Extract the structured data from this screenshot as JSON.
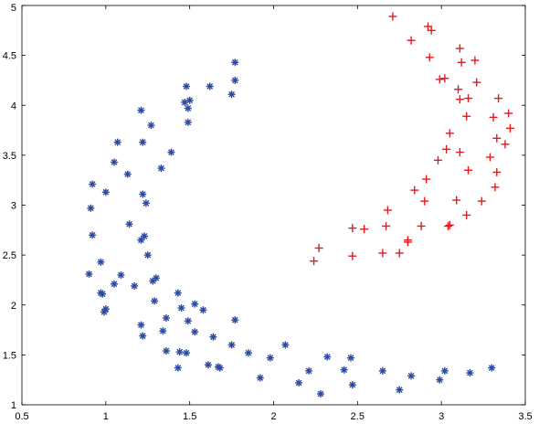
{
  "chart_data": {
    "type": "scatter",
    "title": "",
    "xlabel": "",
    "ylabel": "",
    "xlim": [
      0.5,
      3.5
    ],
    "ylim": [
      1,
      5
    ],
    "xticks": [
      0.5,
      1,
      1.5,
      2,
      2.5,
      3,
      3.5
    ],
    "yticks": [
      1,
      1.5,
      2,
      2.5,
      3,
      3.5,
      4,
      4.5,
      5
    ],
    "xtick_labels": [
      "0.5",
      "1",
      "1.5",
      "2",
      "2.5",
      "3",
      "3.5"
    ],
    "ytick_labels": [
      "1",
      "1.5",
      "2",
      "2.5",
      "3",
      "3.5",
      "4",
      "4.5",
      "5"
    ],
    "grid": false,
    "box": true,
    "series": [
      {
        "marker": "asterisk",
        "color": "#2b4aa0",
        "points": [
          [
            1.77,
            4.43
          ],
          [
            1.77,
            4.25
          ],
          [
            1.75,
            4.11
          ],
          [
            1.62,
            4.19
          ],
          [
            1.48,
            4.19
          ],
          [
            1.47,
            4.03
          ],
          [
            1.5,
            4.05
          ],
          [
            1.49,
            3.97
          ],
          [
            1.49,
            3.83
          ],
          [
            1.21,
            3.95
          ],
          [
            1.27,
            3.8
          ],
          [
            1.07,
            3.63
          ],
          [
            1.22,
            3.63
          ],
          [
            1.39,
            3.53
          ],
          [
            1.05,
            3.43
          ],
          [
            1.33,
            3.37
          ],
          [
            1.13,
            3.31
          ],
          [
            0.92,
            3.21
          ],
          [
            1.0,
            3.13
          ],
          [
            1.22,
            3.11
          ],
          [
            1.24,
            3.02
          ],
          [
            0.91,
            2.97
          ],
          [
            1.14,
            2.81
          ],
          [
            0.92,
            2.7
          ],
          [
            1.23,
            2.69
          ],
          [
            1.21,
            2.65
          ],
          [
            1.25,
            2.5
          ],
          [
            0.97,
            2.43
          ],
          [
            0.9,
            2.31
          ],
          [
            1.09,
            2.3
          ],
          [
            1.3,
            2.27
          ],
          [
            1.28,
            2.24
          ],
          [
            1.05,
            2.21
          ],
          [
            1.17,
            2.19
          ],
          [
            0.97,
            2.12
          ],
          [
            0.98,
            2.11
          ],
          [
            1.43,
            2.12
          ],
          [
            1.29,
            2.04
          ],
          [
            1.53,
            2.01
          ],
          [
            1.45,
            1.97
          ],
          [
            1.0,
            1.96
          ],
          [
            0.99,
            1.93
          ],
          [
            1.58,
            1.95
          ],
          [
            1.36,
            1.87
          ],
          [
            1.49,
            1.84
          ],
          [
            1.77,
            1.85
          ],
          [
            1.21,
            1.8
          ],
          [
            1.34,
            1.74
          ],
          [
            1.53,
            1.73
          ],
          [
            1.64,
            1.68
          ],
          [
            1.22,
            1.69
          ],
          [
            1.75,
            1.6
          ],
          [
            2.07,
            1.6
          ],
          [
            1.44,
            1.53
          ],
          [
            1.36,
            1.54
          ],
          [
            1.48,
            1.52
          ],
          [
            1.85,
            1.52
          ],
          [
            1.98,
            1.47
          ],
          [
            2.32,
            1.48
          ],
          [
            2.46,
            1.47
          ],
          [
            1.61,
            1.4
          ],
          [
            1.67,
            1.38
          ],
          [
            1.68,
            1.37
          ],
          [
            1.43,
            1.37
          ],
          [
            2.21,
            1.34
          ],
          [
            2.42,
            1.35
          ],
          [
            2.65,
            1.34
          ],
          [
            3.3,
            1.37
          ],
          [
            3.02,
            1.34
          ],
          [
            3.17,
            1.32
          ],
          [
            2.82,
            1.29
          ],
          [
            1.92,
            1.27
          ],
          [
            2.99,
            1.25
          ],
          [
            2.15,
            1.22
          ],
          [
            2.47,
            1.2
          ],
          [
            2.28,
            1.11
          ],
          [
            2.75,
            1.15
          ]
        ]
      },
      {
        "marker": "plus",
        "color": "#e41a1c",
        "points": [
          [
            2.71,
            4.89
          ],
          [
            2.92,
            4.79
          ],
          [
            2.94,
            4.75
          ],
          [
            2.82,
            4.65
          ],
          [
            3.11,
            4.57
          ],
          [
            2.93,
            4.48
          ],
          [
            3.2,
            4.45
          ],
          [
            3.12,
            4.43
          ],
          [
            3.02,
            4.27
          ],
          [
            2.99,
            4.26
          ],
          [
            3.21,
            4.23
          ],
          [
            3.1,
            4.16
          ],
          [
            3.16,
            4.07
          ],
          [
            3.34,
            4.07
          ],
          [
            3.11,
            4.06
          ],
          [
            3.4,
            3.92
          ],
          [
            3.15,
            3.89
          ],
          [
            3.31,
            3.88
          ],
          [
            3.41,
            3.77
          ],
          [
            3.05,
            3.72
          ],
          [
            3.33,
            3.67
          ],
          [
            3.38,
            3.61
          ],
          [
            3.03,
            3.56
          ],
          [
            3.11,
            3.53
          ],
          [
            3.29,
            3.48
          ],
          [
            2.98,
            3.45
          ],
          [
            3.16,
            3.35
          ],
          [
            3.33,
            3.33
          ],
          [
            2.91,
            3.26
          ],
          [
            3.32,
            3.18
          ],
          [
            2.84,
            3.15
          ],
          [
            3.09,
            3.05
          ],
          [
            3.24,
            3.04
          ],
          [
            2.9,
            3.04
          ],
          [
            2.68,
            2.95
          ],
          [
            3.15,
            2.9
          ],
          [
            3.05,
            2.8
          ],
          [
            3.04,
            2.79
          ],
          [
            2.67,
            2.79
          ],
          [
            2.88,
            2.79
          ],
          [
            2.47,
            2.77
          ],
          [
            2.54,
            2.76
          ],
          [
            2.8,
            2.65
          ],
          [
            2.8,
            2.63
          ],
          [
            2.27,
            2.57
          ],
          [
            2.65,
            2.52
          ],
          [
            2.75,
            2.52
          ],
          [
            2.47,
            2.49
          ],
          [
            2.24,
            2.44
          ]
        ]
      }
    ]
  }
}
